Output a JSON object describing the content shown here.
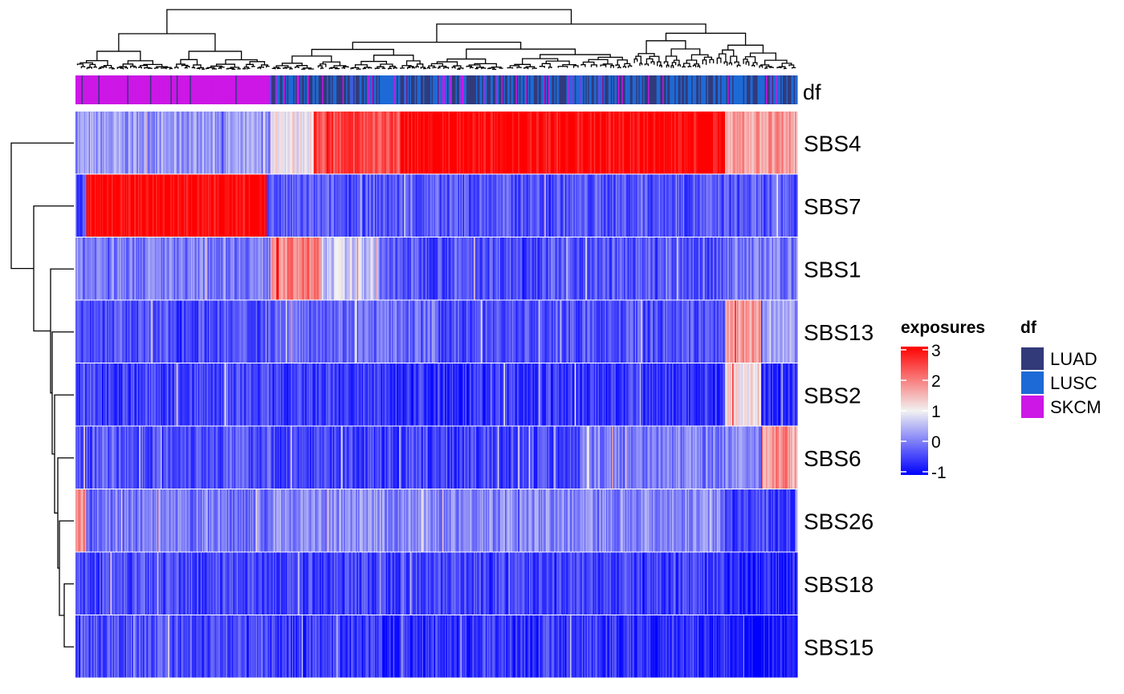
{
  "chart_data": {
    "type": "heatmap",
    "rows": [
      "SBS4",
      "SBS7",
      "SBS1",
      "SBS13",
      "SBS2",
      "SBS6",
      "SBS26",
      "SBS18",
      "SBS15"
    ],
    "column_groups": [
      {
        "group": "SKCM",
        "approx_fraction": 0.27
      },
      {
        "group": "LUAD/LUSC mixed",
        "approx_fraction": 0.73
      }
    ],
    "annotation": {
      "label": "df",
      "legend_title": "df",
      "categories": [
        {
          "name": "LUAD",
          "color": "#323a7a"
        },
        {
          "name": "LUSC",
          "color": "#1d6ad6"
        },
        {
          "name": "SKCM",
          "color": "#cc17e6"
        }
      ]
    },
    "color_scale": {
      "title": "exposures",
      "min": -1,
      "max": 3,
      "ticks": [
        "3",
        "2",
        "1",
        "0",
        "-1"
      ],
      "tick_values": [
        3,
        2,
        1,
        0,
        -1
      ],
      "stops": [
        {
          "value": -1,
          "color": "#0000ff"
        },
        {
          "value": 1,
          "color": "#f2f2f2"
        },
        {
          "value": 3,
          "color": "#ff0000"
        }
      ]
    },
    "row_profiles": {
      "SBS4": {
        "segments": [
          {
            "from": 0.0,
            "to": 0.27,
            "mean": 0.25
          },
          {
            "from": 0.27,
            "to": 0.33,
            "mean": 1.1
          },
          {
            "from": 0.33,
            "to": 0.45,
            "mean": 2.4
          },
          {
            "from": 0.45,
            "to": 0.9,
            "mean": 3.0
          },
          {
            "from": 0.9,
            "to": 1.0,
            "mean": 1.7
          }
        ]
      },
      "SBS7": {
        "segments": [
          {
            "from": 0.0,
            "to": 0.015,
            "mean": -0.5
          },
          {
            "from": 0.015,
            "to": 0.265,
            "mean": 3.0
          },
          {
            "from": 0.265,
            "to": 1.0,
            "mean": -0.3
          }
        ]
      },
      "SBS1": {
        "segments": [
          {
            "from": 0.0,
            "to": 0.27,
            "mean": 0.05
          },
          {
            "from": 0.27,
            "to": 0.34,
            "mean": 1.9
          },
          {
            "from": 0.34,
            "to": 0.42,
            "mean": 0.7
          },
          {
            "from": 0.42,
            "to": 0.9,
            "mean": -0.3
          },
          {
            "from": 0.9,
            "to": 1.0,
            "mean": 0.0
          }
        ]
      },
      "SBS13": {
        "segments": [
          {
            "from": 0.0,
            "to": 0.27,
            "mean": -0.35
          },
          {
            "from": 0.27,
            "to": 0.5,
            "mean": -0.1
          },
          {
            "from": 0.5,
            "to": 0.9,
            "mean": -0.35
          },
          {
            "from": 0.9,
            "to": 0.95,
            "mean": 1.7
          },
          {
            "from": 0.95,
            "to": 1.0,
            "mean": 0.3
          }
        ]
      },
      "SBS2": {
        "segments": [
          {
            "from": 0.0,
            "to": 0.27,
            "mean": -0.45
          },
          {
            "from": 0.27,
            "to": 0.9,
            "mean": -0.55
          },
          {
            "from": 0.9,
            "to": 0.95,
            "mean": 1.2
          },
          {
            "from": 0.95,
            "to": 1.0,
            "mean": -0.6
          }
        ]
      },
      "SBS6": {
        "segments": [
          {
            "from": 0.0,
            "to": 0.27,
            "mean": -0.3
          },
          {
            "from": 0.27,
            "to": 0.7,
            "mean": -0.45
          },
          {
            "from": 0.7,
            "to": 0.95,
            "mean": 0.05
          },
          {
            "from": 0.95,
            "to": 1.0,
            "mean": 1.8
          }
        ]
      },
      "SBS26": {
        "segments": [
          {
            "from": 0.0,
            "to": 0.015,
            "mean": 1.7
          },
          {
            "from": 0.015,
            "to": 0.27,
            "mean": -0.05
          },
          {
            "from": 0.27,
            "to": 0.9,
            "mean": 0.15
          },
          {
            "from": 0.9,
            "to": 1.0,
            "mean": -0.45
          }
        ]
      },
      "SBS18": {
        "segments": [
          {
            "from": 0.0,
            "to": 0.27,
            "mean": -0.4
          },
          {
            "from": 0.27,
            "to": 0.9,
            "mean": -0.45
          },
          {
            "from": 0.9,
            "to": 1.0,
            "mean": -0.75
          }
        ]
      },
      "SBS15": {
        "segments": [
          {
            "from": 0.0,
            "to": 0.27,
            "mean": -0.35
          },
          {
            "from": 0.27,
            "to": 0.9,
            "mean": -0.55
          },
          {
            "from": 0.9,
            "to": 1.0,
            "mean": -0.8
          }
        ]
      }
    },
    "row_dendrogram": "((SBS4),((SBS7),((SBS1),((SBS13),(SBS2,(SBS6,(SBS26,(SBS18,SBS15))))))))",
    "column_dendrogram": true,
    "grid": false,
    "legend_placement": "right"
  }
}
